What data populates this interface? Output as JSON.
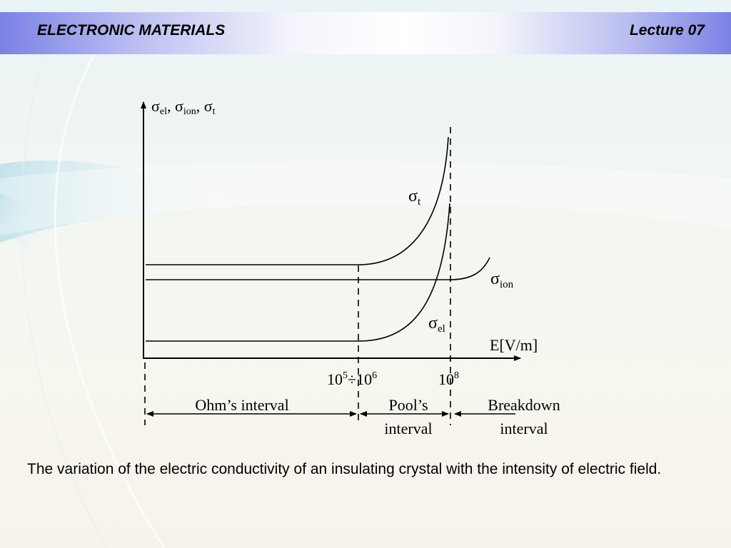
{
  "header": {
    "title": "ELECTRONIC MATERIALS",
    "lecture": "Lecture 07"
  },
  "diagram": {
    "y_axis_label": {
      "sigma_el_sub": "el",
      "sep1": ", ",
      "sigma_ion_sub": "ion",
      "sep2": ", ",
      "sigma_t_sub": "t"
    },
    "x_axis_label": "E[V/m]",
    "curves": {
      "sigma_t_sub": "t",
      "sigma_ion_sub": "ion",
      "sigma_el_sub": "el"
    },
    "tick_1_base": "10",
    "tick_1_exp": "5",
    "tick_1_sep": "÷",
    "tick_2_base": "10",
    "tick_2_exp": "6",
    "tick_3_base": "10",
    "tick_3_exp": "8",
    "intervals": {
      "ohm": "Ohm’s interval",
      "pool_line1": "Pool’s",
      "pool_line2": "interval",
      "breakdown_line1": "Breakdown",
      "breakdown_line2": "interval"
    },
    "sigma_symbol": "σ"
  },
  "caption": "The variation of the electric conductivity of an insulating crystal with the intensity of electric field.",
  "colors": {
    "header_accent": "#7b81e4",
    "ink": "#000000"
  }
}
